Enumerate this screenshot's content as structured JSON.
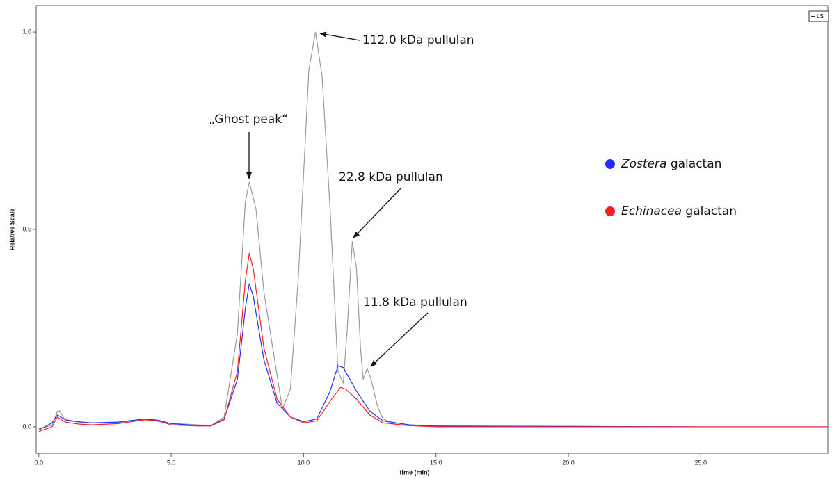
{
  "chart_data": {
    "type": "line",
    "x_label": "time (min)",
    "y_label": "Relative Scale",
    "legend_box_label": "LS",
    "xlim": [
      -0.1,
      29.8
    ],
    "ylim": [
      -0.067,
      1.067
    ],
    "xticks": [
      {
        "value": 0,
        "label": "0.0"
      },
      {
        "value": 5,
        "label": "5.0"
      },
      {
        "value": 10,
        "label": "10.0"
      },
      {
        "value": 15,
        "label": "15.0"
      },
      {
        "value": 20,
        "label": "20.0"
      },
      {
        "value": 25,
        "label": "25.0"
      }
    ],
    "yticks": [
      {
        "value": 0,
        "label": "0.0"
      },
      {
        "value": 0.5,
        "label": "0.5"
      },
      {
        "value": 1,
        "label": "1.0"
      }
    ],
    "series": [
      {
        "color": "#9a9a9a",
        "x": [
          0,
          0.5,
          0.7,
          0.8,
          1.0,
          1.5,
          2,
          3,
          4,
          4.5,
          5,
          6,
          6.5,
          7,
          7.5,
          7.8,
          7.95,
          8.2,
          8.5,
          9.0,
          9.2,
          9.5,
          9.8,
          10.0,
          10.2,
          10.45,
          10.7,
          11.0,
          11.3,
          11.5,
          11.65,
          11.84,
          12.0,
          12.15,
          12.25,
          12.4,
          12.55,
          12.8,
          13,
          13.5,
          14,
          15,
          20,
          25,
          29.8
        ],
        "values": [
          -0.005,
          0.004,
          0.039,
          0.04,
          0.016,
          0.012,
          0.01,
          0.01,
          0.02,
          0.014,
          0.009,
          0.005,
          0.003,
          0.025,
          0.236,
          0.57,
          0.62,
          0.553,
          0.342,
          0.13,
          0.045,
          0.095,
          0.377,
          0.64,
          0.905,
          1.0,
          0.887,
          0.553,
          0.14,
          0.11,
          0.25,
          0.47,
          0.4,
          0.2,
          0.12,
          0.148,
          0.12,
          0.05,
          0.02,
          0.005,
          0.003,
          0.002,
          0.001,
          0,
          0
        ]
      },
      {
        "name": "Zostera galactan",
        "color": "#1f2fff",
        "x": [
          0,
          0.5,
          0.7,
          1.0,
          1.5,
          2,
          3,
          4,
          4.5,
          5,
          6,
          6.5,
          7,
          7.5,
          7.8,
          7.95,
          8.1,
          8.5,
          9,
          9.5,
          10,
          10.5,
          11,
          11.3,
          11.5,
          12,
          12.5,
          13,
          14,
          15,
          20,
          25,
          29.8
        ],
        "values": [
          -0.008,
          0.01,
          0.03,
          0.018,
          0.013,
          0.01,
          0.012,
          0.02,
          0.017,
          0.008,
          0.003,
          0.003,
          0.02,
          0.12,
          0.3,
          0.363,
          0.33,
          0.17,
          0.06,
          0.025,
          0.013,
          0.02,
          0.09,
          0.155,
          0.15,
          0.09,
          0.04,
          0.015,
          0.005,
          0.002,
          0.001,
          0,
          0
        ]
      },
      {
        "name": "Echinacea galactan",
        "color": "#ff1f1f",
        "x": [
          0,
          0.5,
          0.7,
          1.0,
          1.5,
          2,
          3,
          4,
          4.5,
          5,
          6,
          6.5,
          7,
          7.5,
          7.8,
          7.95,
          8.1,
          8.5,
          9,
          9.5,
          10,
          10.5,
          11,
          11.4,
          11.6,
          12,
          12.5,
          13,
          14,
          15,
          20,
          25,
          29.8
        ],
        "values": [
          -0.012,
          0.0,
          0.025,
          0.012,
          0.007,
          0.005,
          0.008,
          0.018,
          0.015,
          0.005,
          0.002,
          0.002,
          0.018,
          0.14,
          0.37,
          0.44,
          0.4,
          0.2,
          0.07,
          0.025,
          0.01,
          0.015,
          0.065,
          0.1,
          0.095,
          0.07,
          0.03,
          0.01,
          0.003,
          0,
          0,
          0,
          0
        ]
      }
    ],
    "annotations": [
      "„Ghost peak“",
      "112.0 kDa pullulan",
      "22.8 kDa pullulan",
      "11.8 kDa pullulan"
    ]
  }
}
